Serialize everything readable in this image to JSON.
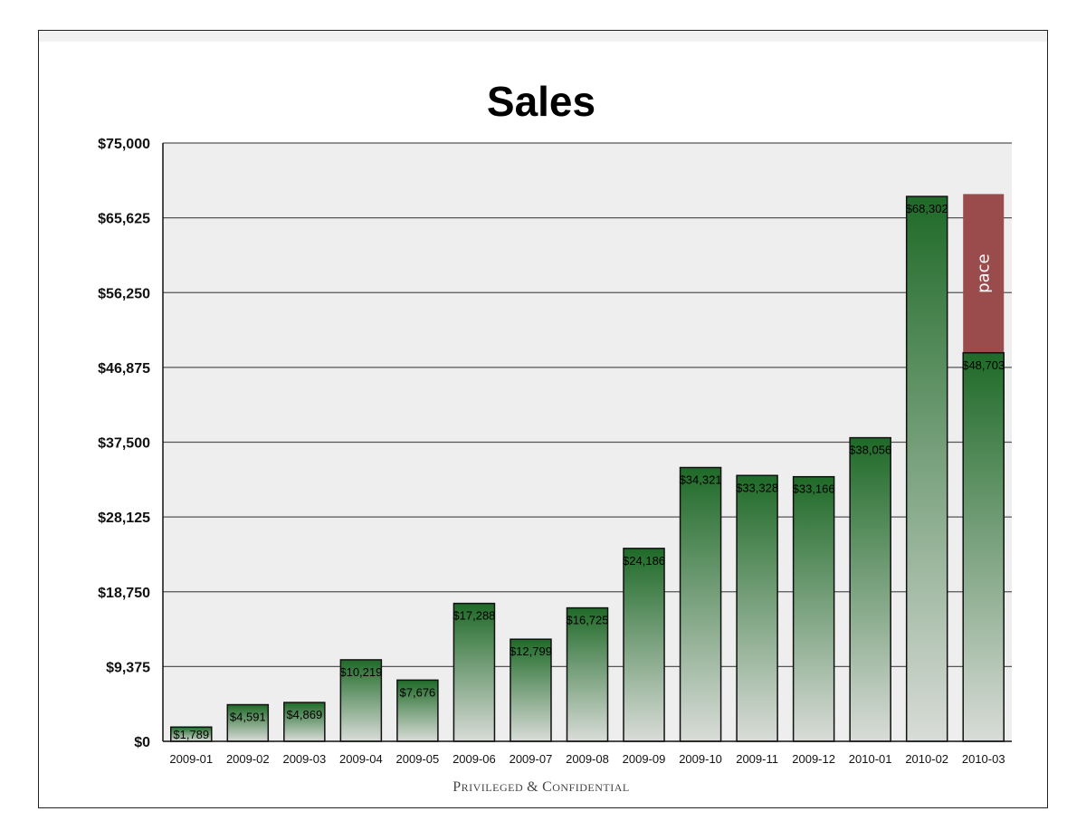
{
  "chart_data": {
    "type": "bar",
    "title": "Sales",
    "xlabel": "",
    "ylabel": "",
    "ylim": [
      0,
      75000
    ],
    "yticks": [
      0,
      9375,
      18750,
      28125,
      37500,
      46875,
      56250,
      65625,
      75000
    ],
    "ytick_labels": [
      "$0",
      "$9,375",
      "$18,750",
      "$28,125",
      "$37,500",
      "$46,875",
      "$56,250",
      "$65,625",
      "$75,000"
    ],
    "grid": true,
    "categories": [
      "2009-01",
      "2009-02",
      "2009-03",
      "2009-04",
      "2009-05",
      "2009-06",
      "2009-07",
      "2009-08",
      "2009-09",
      "2009-10",
      "2009-11",
      "2009-12",
      "2010-01",
      "2010-02",
      "2010-03"
    ],
    "values": [
      1789,
      4591,
      4869,
      10219,
      7676,
      17288,
      12799,
      16725,
      24186,
      34321,
      33328,
      33166,
      38056,
      68302,
      48703
    ],
    "data_labels": [
      "$1,789",
      "$4,591",
      "$4,869",
      "$10,219",
      "$7,676",
      "$17,288",
      "$12,799",
      "$16,725",
      "$24,186",
      "$34,321",
      "$33,328",
      "$33,166",
      "$38,056",
      "$68,302",
      "$48,703"
    ],
    "pace": {
      "category": "2010-03",
      "from": 48703,
      "to": 68600,
      "label": "pace",
      "color": "#9a4b4b"
    },
    "bar_color_top": "#1f6a28",
    "bar_color_bottom": "#d9dcd8",
    "plot_background": "#eeeeee"
  },
  "footer": "Privileged & Confidential"
}
